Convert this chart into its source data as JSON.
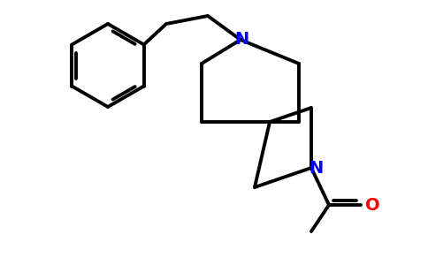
{
  "line_color": "#000000",
  "n_color": "#0000FF",
  "o_color": "#FF0000",
  "line_width": 2.8,
  "bg_color": "#FFFFFF",
  "figsize": [
    4.84,
    3.0
  ],
  "dpi": 100,
  "xlim": [
    0,
    4.84
  ],
  "ylim": [
    0,
    3.0
  ]
}
